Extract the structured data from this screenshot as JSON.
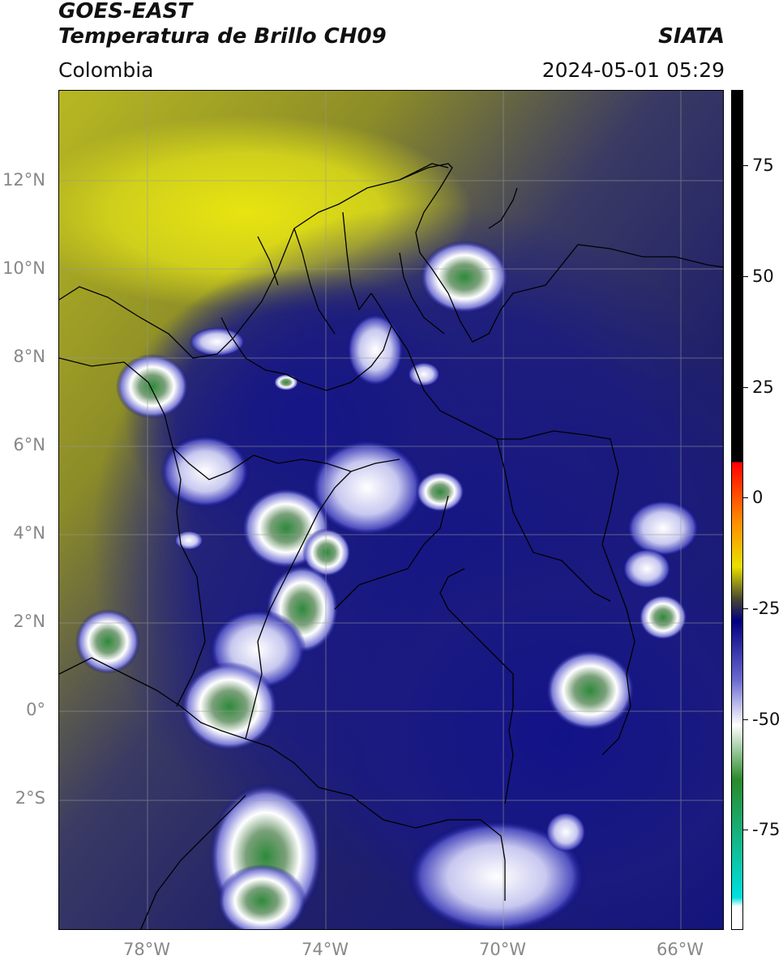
{
  "header": {
    "satellite": "GOES-EAST",
    "product": "Temperatura de Brillo CH09",
    "brand": "SIATA",
    "region": "Colombia",
    "datetime": "2024-05-01 05:29"
  },
  "map": {
    "lat_labels": [
      "12°N",
      "10°N",
      "8°N",
      "6°N",
      "4°N",
      "2°N",
      "0°",
      "2°S"
    ],
    "lon_labels": [
      "78°W",
      "74°W",
      "70°W",
      "66°W"
    ],
    "extent": {
      "lon_min": -80,
      "lon_max": -65,
      "lat_min": -5,
      "lat_max": 14
    }
  },
  "colorbar": {
    "tick_labels": [
      "75",
      "50",
      "25",
      "0",
      "-25",
      "-50",
      "-75"
    ],
    "range": [
      -95,
      90
    ],
    "colors": {
      "top": "#000000",
      "red": "#ff0000",
      "orange": "#ff8c00",
      "yellow": "#e8e000",
      "olive": "#4a4a30",
      "navy": "#000080",
      "white": "#ffffff",
      "green": "#2a8a2a",
      "cyan": "#00e0e0"
    }
  }
}
